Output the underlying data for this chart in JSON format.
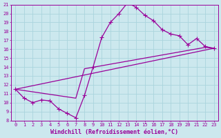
{
  "xlabel": "Windchill (Refroidissement éolien,°C)",
  "bg_color": "#cce8ee",
  "grid_color": "#aad4dd",
  "line_color": "#990099",
  "xlim": [
    -0.5,
    23.5
  ],
  "ylim": [
    8,
    21
  ],
  "xticks": [
    0,
    1,
    2,
    3,
    4,
    5,
    6,
    7,
    8,
    9,
    10,
    11,
    12,
    13,
    14,
    15,
    16,
    17,
    18,
    19,
    20,
    21,
    22,
    23
  ],
  "yticks": [
    8,
    9,
    10,
    11,
    12,
    13,
    14,
    15,
    16,
    17,
    18,
    19,
    20,
    21
  ],
  "line1_x": [
    0,
    1,
    2,
    3,
    4,
    5,
    6,
    7,
    8,
    9,
    10,
    11,
    12,
    13,
    14,
    15,
    16,
    17,
    18,
    19,
    20,
    21,
    22,
    23
  ],
  "line1_y": [
    11.5,
    10.5,
    10.0,
    10.3,
    10.2,
    9.3,
    8.8,
    8.3,
    10.8,
    14.0,
    17.3,
    19.0,
    20.0,
    21.2,
    20.7,
    19.8,
    19.2,
    18.2,
    17.7,
    17.5,
    16.5,
    17.2,
    16.3,
    16.1
  ],
  "line2_x": [
    0,
    7,
    8,
    22,
    23
  ],
  "line2_y": [
    11.5,
    10.5,
    13.8,
    16.2,
    16.1
  ],
  "line3_x": [
    0,
    23
  ],
  "line3_y": [
    11.5,
    16.1
  ],
  "markersize": 2.5,
  "linewidth": 0.9,
  "label_fontsize": 6,
  "tick_fontsize": 5
}
